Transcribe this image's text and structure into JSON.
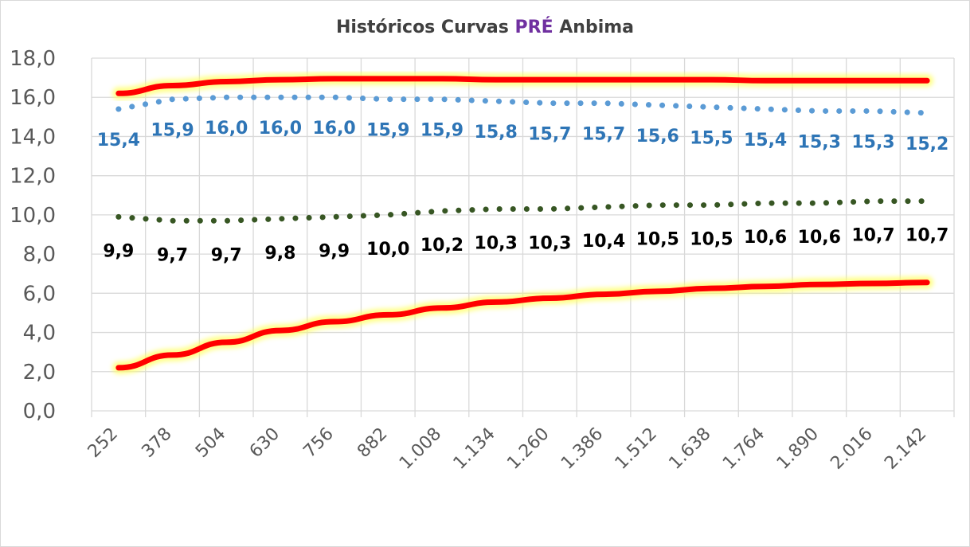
{
  "chart_data": {
    "type": "line",
    "title_parts": [
      "Históricos Curvas ",
      "PRÉ",
      " Anbima"
    ],
    "categories": [
      "252",
      "378",
      "504",
      "630",
      "756",
      "882",
      "1.008",
      "1.134",
      "1.260",
      "1.386",
      "1.512",
      "1.638",
      "1.764",
      "1.890",
      "2.016",
      "2.142"
    ],
    "yticks": [
      "0,0",
      "2,0",
      "4,0",
      "6,0",
      "8,0",
      "10,0",
      "12,0",
      "14,0",
      "16,0",
      "18,0"
    ],
    "ylim": [
      0,
      18
    ],
    "grid": true,
    "series": [
      {
        "style": "solid-red-glow",
        "color": "#ff0000",
        "values": [
          16.2,
          16.6,
          16.8,
          16.9,
          16.95,
          16.95,
          16.95,
          16.9,
          16.9,
          16.9,
          16.9,
          16.9,
          16.85,
          16.85,
          16.85,
          16.85
        ]
      },
      {
        "style": "dotted",
        "color": "#5b9bd5",
        "values": [
          15.4,
          15.9,
          16.0,
          16.0,
          16.0,
          15.9,
          15.9,
          15.8,
          15.7,
          15.7,
          15.6,
          15.5,
          15.4,
          15.3,
          15.3,
          15.2
        ],
        "labels": [
          "15,4",
          "15,9",
          "16,0",
          "16,0",
          "16,0",
          "15,9",
          "15,9",
          "15,8",
          "15,7",
          "15,7",
          "15,6",
          "15,5",
          "15,4",
          "15,3",
          "15,3",
          "15,2"
        ],
        "label_color": "#2e75b6"
      },
      {
        "style": "dotted",
        "color": "#375623",
        "values": [
          9.9,
          9.7,
          9.7,
          9.8,
          9.9,
          10.0,
          10.2,
          10.3,
          10.3,
          10.4,
          10.5,
          10.5,
          10.6,
          10.6,
          10.7,
          10.7
        ],
        "labels": [
          "9,9",
          "9,7",
          "9,7",
          "9,8",
          "9,9",
          "10,0",
          "10,2",
          "10,3",
          "10,3",
          "10,4",
          "10,5",
          "10,5",
          "10,6",
          "10,6",
          "10,7",
          "10,7"
        ],
        "label_color": "#000000"
      },
      {
        "style": "solid-red-glow",
        "color": "#ff0000",
        "values": [
          2.2,
          2.85,
          3.5,
          4.1,
          4.55,
          4.9,
          5.25,
          5.55,
          5.75,
          5.95,
          6.1,
          6.25,
          6.35,
          6.45,
          6.5,
          6.55
        ]
      }
    ]
  }
}
